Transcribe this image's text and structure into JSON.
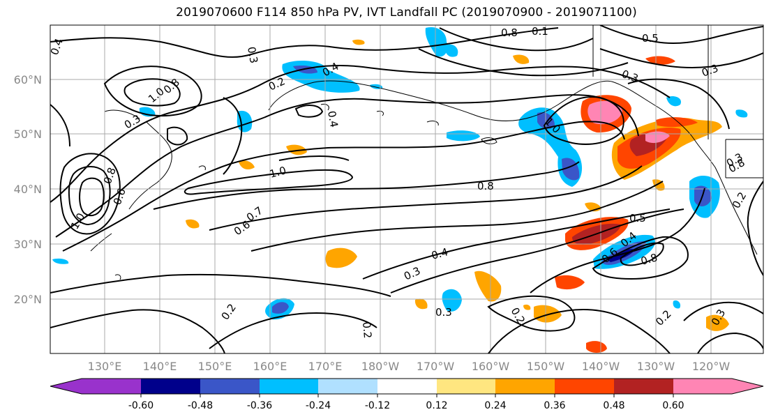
{
  "title": "2019070600 F114 850 hPa PV, IVT Landfall PC (2019070900 - 2019071100)",
  "map": {
    "lat_labels": [
      "60°N",
      "50°N",
      "40°N",
      "30°N",
      "20°N"
    ],
    "lon_labels": [
      "130°E",
      "140°E",
      "150°E",
      "160°E",
      "170°E",
      "180°W",
      "170°W",
      "160°W",
      "150°W",
      "140°W",
      "130°W",
      "120°W"
    ],
    "contour_labels": [
      "0.4",
      "0.3",
      "0.8",
      "0.1",
      "0.3",
      "0.4",
      "0.2",
      "0.5",
      "1.0",
      "0.8",
      "0.4",
      "1.0",
      "1.0",
      "0.3",
      "0.8",
      "0.3",
      "0.8",
      "0.6",
      "0.7",
      "0.6",
      "1.0",
      "0.8",
      "0.3",
      "0.5",
      "0.6",
      "0.4",
      "0.8",
      "0.4",
      "0.3",
      "0.2",
      "0.2",
      "0.3",
      "0.2",
      "0.2",
      "0.3",
      "0.2"
    ]
  },
  "colorbar": {
    "colors": [
      "#9932cc",
      "#00008b",
      "#3a56c8",
      "#00bfff",
      "#b0e0ff",
      "#ffffff",
      "#ffe680",
      "#ffa500",
      "#ff4500",
      "#b22222",
      "#ff85b4"
    ],
    "tick_labels": [
      "-0.60",
      "-0.48",
      "-0.36",
      "-0.24",
      "-0.12",
      "0.12",
      "0.24",
      "0.36",
      "0.48",
      "0.60"
    ]
  }
}
